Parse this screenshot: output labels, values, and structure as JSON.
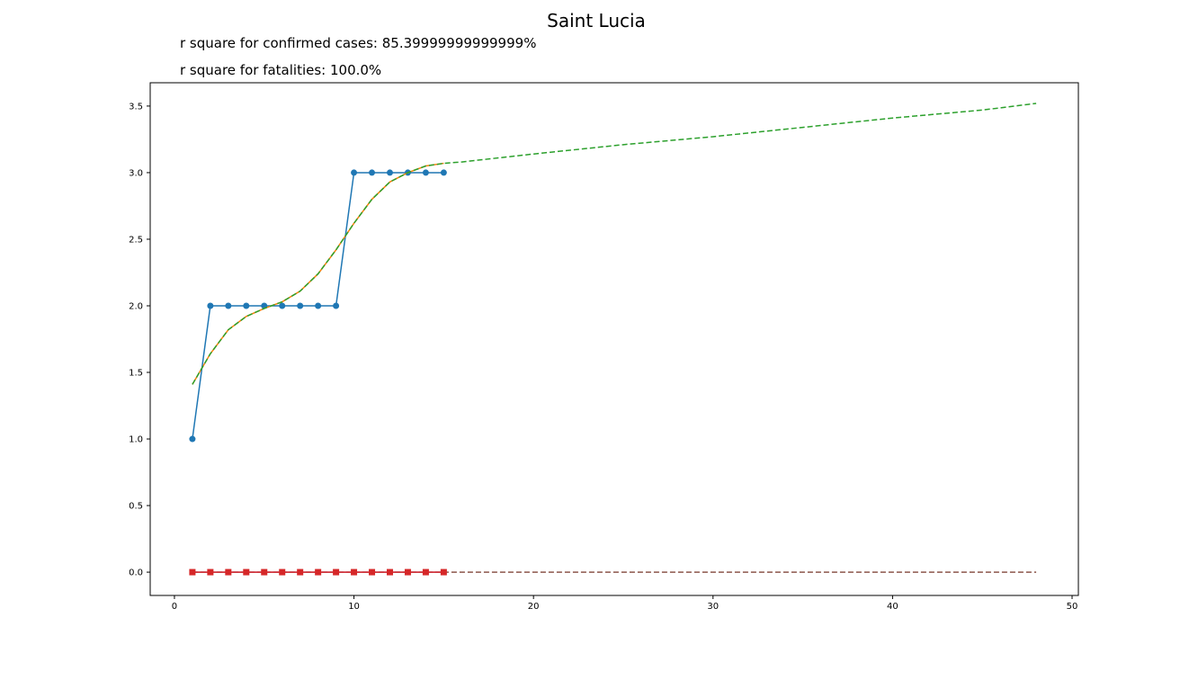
{
  "chart_data": {
    "type": "line",
    "title": "Saint Lucia",
    "annotations": [
      "r square for confirmed cases: 85.39999999999999%",
      "r square for fatalities: 100.0%"
    ],
    "xlim": [
      -1.35,
      50.35
    ],
    "ylim": [
      -0.175,
      3.675
    ],
    "xticks": [
      0,
      10,
      20,
      30,
      40,
      50
    ],
    "yticks": [
      0.0,
      0.5,
      1.0,
      1.5,
      2.0,
      2.5,
      3.0,
      3.5
    ],
    "xtick_labels": [
      "0",
      "10",
      "20",
      "30",
      "40",
      "50"
    ],
    "ytick_labels": [
      "0.0",
      "0.5",
      "1.0",
      "1.5",
      "2.0",
      "2.5",
      "3.0",
      "3.5"
    ],
    "grid": false,
    "colors": {
      "confirmed": "#1f77b4",
      "fit": "#ff7f0e",
      "forecast": "#2ca02c",
      "fatalities": "#d62728",
      "fatalities_fit": "#9467bd",
      "fatalities_forecast": "#8c564b"
    },
    "series": [
      {
        "key": "confirmed",
        "style": "solid-markers",
        "x": [
          1,
          2,
          3,
          4,
          5,
          6,
          7,
          8,
          9,
          10,
          11,
          12,
          13,
          14,
          15
        ],
        "values": [
          1,
          2,
          2,
          2,
          2,
          2,
          2,
          2,
          2,
          3,
          3,
          3,
          3,
          3,
          3
        ]
      },
      {
        "key": "fit",
        "style": "solid",
        "x": [
          1,
          2,
          3,
          4,
          5,
          6,
          7,
          8,
          9,
          10,
          11,
          12,
          13,
          14,
          15
        ],
        "values": [
          1.41,
          1.64,
          1.82,
          1.92,
          1.98,
          2.03,
          2.11,
          2.24,
          2.42,
          2.62,
          2.8,
          2.93,
          3.0,
          3.05,
          3.07
        ]
      },
      {
        "key": "forecast",
        "style": "dashed",
        "x": [
          1,
          2,
          3,
          4,
          5,
          6,
          7,
          8,
          9,
          10,
          11,
          12,
          13,
          14,
          15,
          16,
          20,
          25,
          30,
          35,
          40,
          45,
          48
        ],
        "values": [
          1.41,
          1.64,
          1.82,
          1.92,
          1.98,
          2.03,
          2.11,
          2.24,
          2.42,
          2.62,
          2.8,
          2.93,
          3.0,
          3.05,
          3.07,
          3.08,
          3.14,
          3.21,
          3.27,
          3.34,
          3.41,
          3.47,
          3.52
        ]
      },
      {
        "key": "fatalities_forecast",
        "style": "dashed",
        "x": [
          1,
          48
        ],
        "values": [
          0,
          0
        ]
      },
      {
        "key": "fatalities_fit",
        "style": "solid",
        "x": [
          1,
          15
        ],
        "values": [
          0,
          0
        ]
      },
      {
        "key": "fatalities",
        "style": "solid-squares",
        "x": [
          1,
          2,
          3,
          4,
          5,
          6,
          7,
          8,
          9,
          10,
          11,
          12,
          13,
          14,
          15
        ],
        "values": [
          0,
          0,
          0,
          0,
          0,
          0,
          0,
          0,
          0,
          0,
          0,
          0,
          0,
          0,
          0
        ]
      }
    ]
  }
}
